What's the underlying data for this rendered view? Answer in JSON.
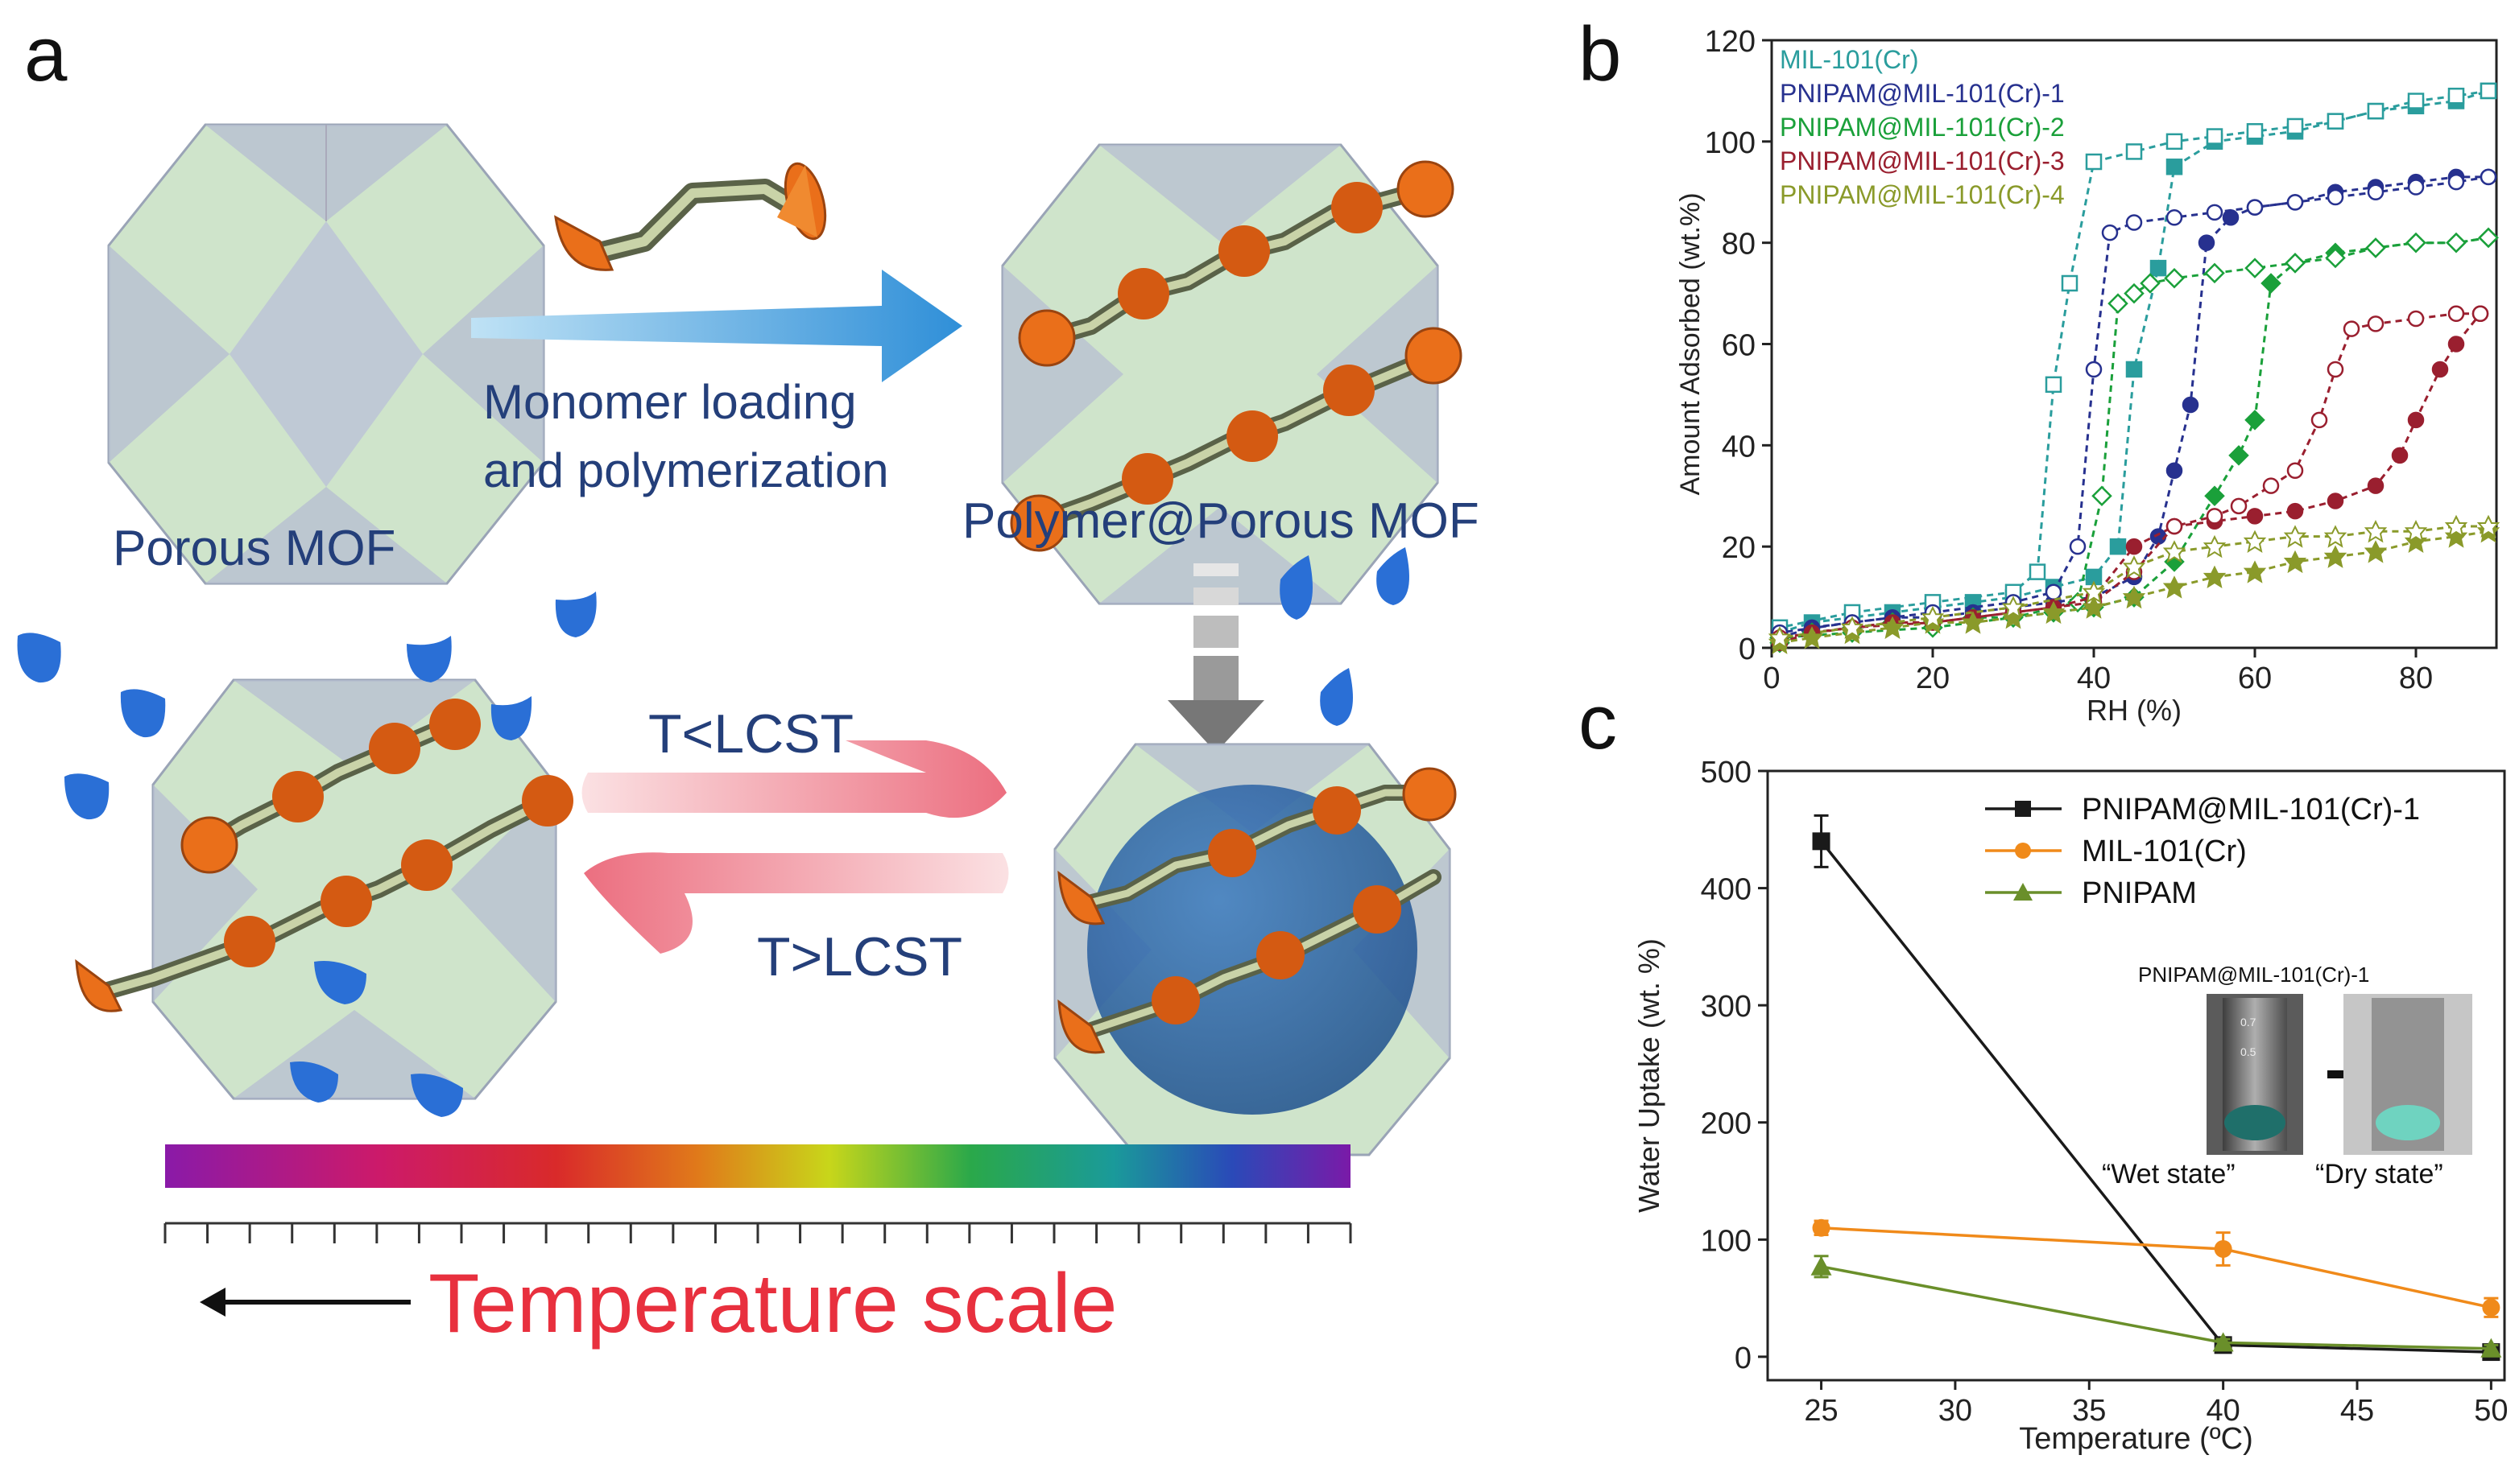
{
  "panel_a": {
    "letter": "a",
    "porous_mof_label": "Porous MOF",
    "process_label_line1": "Monomer loading",
    "process_label_line2": "and polymerization",
    "polymer_mof_label": "Polymer@Porous MOF",
    "forward_label": "T<LCST",
    "reverse_label": "T>LCST",
    "scale_label": "Temperature scale",
    "colors": {
      "mof_face": "#c9e2c4",
      "mof_edge": "#9aa0b4",
      "monomer": "#ea6f1a",
      "water": "#2a6fd6",
      "arrow_blue": "#3d93d6",
      "temp_text": "#e8303e",
      "label_blue": "#243f7a"
    }
  },
  "chart_data": [
    {
      "panel": "b",
      "type": "line",
      "xlabel": "RH (%)",
      "ylabel": "Amount Adsorbed (wt.%)",
      "xlim": [
        0,
        90
      ],
      "ylim": [
        0,
        120
      ],
      "xticks": [
        0,
        20,
        40,
        60,
        80
      ],
      "yticks": [
        0,
        20,
        40,
        60,
        80,
        100,
        120
      ],
      "legend_position": "top-left",
      "series": [
        {
          "name": "MIL-101(Cr)",
          "color": "#2a9d9d",
          "adsorption": [
            [
              1,
              3
            ],
            [
              5,
              5
            ],
            [
              10,
              6
            ],
            [
              15,
              7
            ],
            [
              20,
              8
            ],
            [
              25,
              9
            ],
            [
              30,
              10
            ],
            [
              35,
              12
            ],
            [
              40,
              14
            ],
            [
              43,
              20
            ],
            [
              45,
              55
            ],
            [
              48,
              75
            ],
            [
              50,
              95
            ],
            [
              55,
              100
            ],
            [
              60,
              101
            ],
            [
              65,
              102
            ],
            [
              70,
              104
            ],
            [
              75,
              106
            ],
            [
              80,
              107
            ],
            [
              85,
              108
            ],
            [
              89,
              110
            ]
          ],
          "desorption": [
            [
              89,
              110
            ],
            [
              85,
              109
            ],
            [
              80,
              108
            ],
            [
              75,
              106
            ],
            [
              70,
              104
            ],
            [
              65,
              103
            ],
            [
              60,
              102
            ],
            [
              55,
              101
            ],
            [
              50,
              100
            ],
            [
              45,
              98
            ],
            [
              40,
              96
            ],
            [
              37,
              72
            ],
            [
              35,
              52
            ],
            [
              33,
              15
            ],
            [
              30,
              11
            ],
            [
              20,
              9
            ],
            [
              10,
              7
            ],
            [
              1,
              4
            ]
          ]
        },
        {
          "name": "PNIPAM@MIL-101(Cr)-1",
          "color": "#27318f",
          "adsorption": [
            [
              1,
              2
            ],
            [
              5,
              4
            ],
            [
              10,
              5
            ],
            [
              15,
              6
            ],
            [
              20,
              6
            ],
            [
              25,
              7
            ],
            [
              30,
              8
            ],
            [
              35,
              9
            ],
            [
              40,
              10
            ],
            [
              45,
              14
            ],
            [
              48,
              22
            ],
            [
              50,
              35
            ],
            [
              52,
              48
            ],
            [
              54,
              80
            ],
            [
              57,
              85
            ],
            [
              60,
              87
            ],
            [
              65,
              88
            ],
            [
              70,
              90
            ],
            [
              75,
              91
            ],
            [
              80,
              92
            ],
            [
              85,
              93
            ],
            [
              89,
              93
            ]
          ],
          "desorption": [
            [
              89,
              93
            ],
            [
              85,
              92
            ],
            [
              80,
              91
            ],
            [
              75,
              90
            ],
            [
              70,
              89
            ],
            [
              65,
              88
            ],
            [
              60,
              87
            ],
            [
              55,
              86
            ],
            [
              50,
              85
            ],
            [
              45,
              84
            ],
            [
              42,
              82
            ],
            [
              40,
              55
            ],
            [
              38,
              20
            ],
            [
              35,
              11
            ],
            [
              30,
              9
            ],
            [
              20,
              7
            ],
            [
              10,
              5
            ],
            [
              1,
              3
            ]
          ]
        },
        {
          "name": "PNIPAM@MIL-101(Cr)-2",
          "color": "#1aa03a",
          "adsorption": [
            [
              1,
              1
            ],
            [
              5,
              3
            ],
            [
              10,
              4
            ],
            [
              15,
              5
            ],
            [
              20,
              5
            ],
            [
              25,
              6
            ],
            [
              30,
              6
            ],
            [
              35,
              7
            ],
            [
              40,
              8
            ],
            [
              45,
              10
            ],
            [
              50,
              17
            ],
            [
              55,
              30
            ],
            [
              58,
              38
            ],
            [
              60,
              45
            ],
            [
              62,
              72
            ],
            [
              65,
              76
            ],
            [
              70,
              78
            ],
            [
              75,
              79
            ],
            [
              80,
              80
            ],
            [
              85,
              80
            ],
            [
              89,
              81
            ]
          ],
          "desorption": [
            [
              89,
              81
            ],
            [
              85,
              80
            ],
            [
              80,
              80
            ],
            [
              75,
              79
            ],
            [
              70,
              77
            ],
            [
              65,
              76
            ],
            [
              60,
              75
            ],
            [
              55,
              74
            ],
            [
              50,
              73
            ],
            [
              47,
              72
            ],
            [
              45,
              70
            ],
            [
              43,
              68
            ],
            [
              41,
              30
            ],
            [
              38,
              9
            ],
            [
              30,
              6
            ],
            [
              20,
              4
            ],
            [
              10,
              3
            ],
            [
              1,
              2
            ]
          ]
        },
        {
          "name": "PNIPAM@MIL-101(Cr)-3",
          "color": "#9a1f2f",
          "adsorption": [
            [
              1,
              1
            ],
            [
              5,
              3
            ],
            [
              10,
              4
            ],
            [
              15,
              5
            ],
            [
              20,
              5
            ],
            [
              25,
              6
            ],
            [
              30,
              7
            ],
            [
              35,
              8
            ],
            [
              40,
              10
            ],
            [
              45,
              20
            ],
            [
              50,
              24
            ],
            [
              55,
              25
            ],
            [
              60,
              26
            ],
            [
              65,
              27
            ],
            [
              70,
              29
            ],
            [
              75,
              32
            ],
            [
              78,
              38
            ],
            [
              80,
              45
            ],
            [
              83,
              55
            ],
            [
              85,
              60
            ],
            [
              88,
              66
            ]
          ],
          "desorption": [
            [
              88,
              66
            ],
            [
              85,
              66
            ],
            [
              80,
              65
            ],
            [
              75,
              64
            ],
            [
              72,
              63
            ],
            [
              70,
              55
            ],
            [
              68,
              45
            ],
            [
              65,
              35
            ],
            [
              62,
              32
            ],
            [
              58,
              28
            ],
            [
              55,
              26
            ],
            [
              50,
              24
            ],
            [
              45,
              15
            ],
            [
              40,
              9
            ],
            [
              30,
              7
            ],
            [
              20,
              5
            ],
            [
              10,
              4
            ],
            [
              1,
              2
            ]
          ]
        },
        {
          "name": "PNIPAM@MIL-101(Cr)-4",
          "color": "#8a9a2a",
          "adsorption": [
            [
              1,
              1
            ],
            [
              5,
              2
            ],
            [
              10,
              3
            ],
            [
              15,
              4
            ],
            [
              20,
              5
            ],
            [
              25,
              5
            ],
            [
              30,
              6
            ],
            [
              35,
              7
            ],
            [
              40,
              8
            ],
            [
              45,
              10
            ],
            [
              50,
              12
            ],
            [
              55,
              14
            ],
            [
              60,
              15
            ],
            [
              65,
              17
            ],
            [
              70,
              18
            ],
            [
              75,
              19
            ],
            [
              80,
              21
            ],
            [
              85,
              22
            ],
            [
              89,
              23
            ]
          ],
          "desorption": [
            [
              89,
              24
            ],
            [
              85,
              24
            ],
            [
              80,
              23
            ],
            [
              75,
              23
            ],
            [
              70,
              22
            ],
            [
              65,
              22
            ],
            [
              60,
              21
            ],
            [
              55,
              20
            ],
            [
              50,
              19
            ],
            [
              45,
              16
            ],
            [
              40,
              11
            ],
            [
              30,
              8
            ],
            [
              20,
              6
            ],
            [
              10,
              4
            ],
            [
              1,
              2
            ]
          ]
        }
      ]
    },
    {
      "panel": "c",
      "type": "line",
      "xlabel": "Temperature (ºC)",
      "ylabel": "Water Uptake (wt. %)",
      "xlim": [
        23,
        50.5
      ],
      "ylim": [
        -20,
        500
      ],
      "xticks": [
        25,
        30,
        35,
        40,
        45,
        50
      ],
      "yticks": [
        0,
        100,
        200,
        300,
        400,
        500
      ],
      "legend_position": "top-right",
      "series": [
        {
          "name": "PNIPAM@MIL-101(Cr)-1",
          "color": "#1a1a1a",
          "marker": "square",
          "x": [
            25,
            40,
            50
          ],
          "y": [
            440,
            10,
            4
          ],
          "err": [
            22,
            4,
            3
          ]
        },
        {
          "name": "MIL-101(Cr)",
          "color": "#f08a1a",
          "marker": "circle",
          "x": [
            25,
            40,
            50
          ],
          "y": [
            110,
            92,
            42
          ],
          "err": [
            6,
            14,
            8
          ]
        },
        {
          "name": "PNIPAM",
          "color": "#6a8f2a",
          "marker": "triangle",
          "x": [
            25,
            40,
            50
          ],
          "y": [
            77,
            12,
            7
          ],
          "err": [
            9,
            3,
            3
          ]
        }
      ]
    }
  ],
  "panel_b": {
    "letter": "b"
  },
  "panel_c": {
    "letter": "c",
    "inset_title": "PNIPAM@MIL-101(Cr)-1",
    "wet_label": "“Wet  state”",
    "dry_label": "“Dry  state”"
  }
}
